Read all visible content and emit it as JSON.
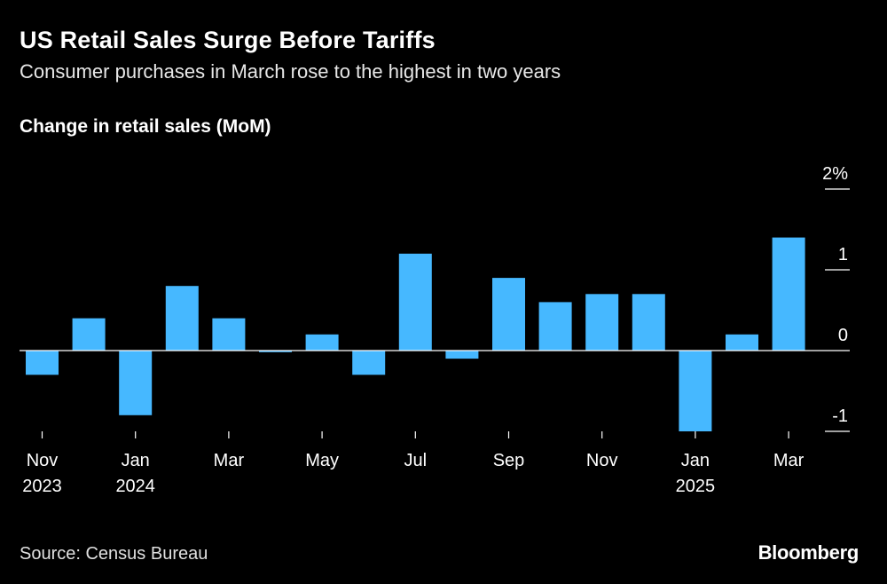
{
  "header": {
    "title": "US Retail Sales Surge Before Tariffs",
    "subtitle": "Consumer purchases in March rose to the highest in two years",
    "chart_label": "Change in retail sales (MoM)"
  },
  "footer": {
    "source": "Source: Census Bureau",
    "brand": "Bloomberg"
  },
  "colors": {
    "background": "#000000",
    "bar": "#46b8ff",
    "text": "#ffffff",
    "zero_line": "#ffffff"
  },
  "chart_data": {
    "type": "bar",
    "title": "Change in retail sales (MoM)",
    "xlabel": "",
    "ylabel": "",
    "ylim": [
      -1,
      2
    ],
    "categories": [
      "Nov 2023",
      "Dec 2023",
      "Jan 2024",
      "Feb 2024",
      "Mar 2024",
      "Apr 2024",
      "May 2024",
      "Jun 2024",
      "Jul 2024",
      "Aug 2024",
      "Sep 2024",
      "Oct 2024",
      "Nov 2024",
      "Dec 2024",
      "Jan 2025",
      "Feb 2025",
      "Mar 2025"
    ],
    "values": [
      -0.3,
      0.4,
      -0.8,
      0.8,
      0.4,
      -0.02,
      0.2,
      -0.3,
      1.2,
      -0.1,
      0.9,
      0.6,
      0.7,
      0.7,
      -1.0,
      0.2,
      1.4
    ],
    "y_ticks": [
      {
        "value": 2,
        "label": "2%"
      },
      {
        "value": 1,
        "label": "1"
      },
      {
        "value": 0,
        "label": "0"
      },
      {
        "value": -1,
        "label": "-1"
      }
    ],
    "x_ticks": [
      {
        "index": 0,
        "line1": "Nov",
        "line2": "2023"
      },
      {
        "index": 2,
        "line1": "Jan",
        "line2": "2024"
      },
      {
        "index": 4,
        "line1": "Mar",
        "line2": ""
      },
      {
        "index": 6,
        "line1": "May",
        "line2": ""
      },
      {
        "index": 8,
        "line1": "Jul",
        "line2": ""
      },
      {
        "index": 10,
        "line1": "Sep",
        "line2": ""
      },
      {
        "index": 12,
        "line1": "Nov",
        "line2": ""
      },
      {
        "index": 14,
        "line1": "Jan",
        "line2": "2025"
      },
      {
        "index": 16,
        "line1": "Mar",
        "line2": ""
      }
    ],
    "grid": false,
    "legend": "none"
  }
}
